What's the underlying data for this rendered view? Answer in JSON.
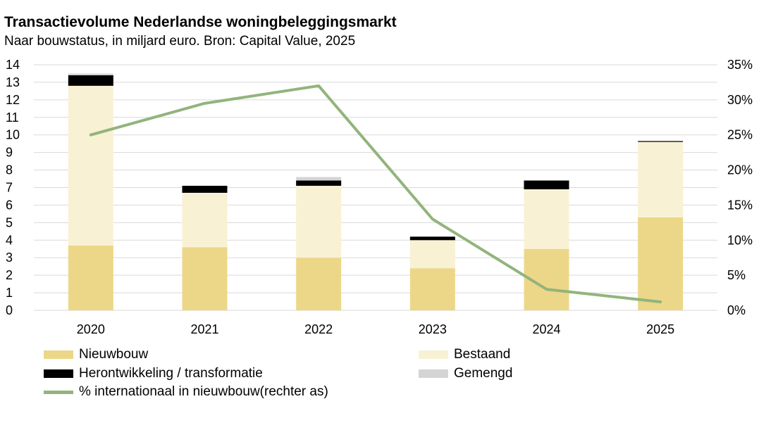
{
  "header": {
    "title": "Transactievolume Nederlandse woningbeleggingsmarkt",
    "subtitle": "Naar bouwstatus, in miljard euro. Bron: Capital Value, 2025"
  },
  "colors": {
    "nieuwbouw": "#ecd789",
    "bestaand": "#f8f1d3",
    "herontwikkeling": "#000000",
    "gemengd": "#d4d4d4",
    "line": "#92b47c",
    "grid": "#d9d9d9"
  },
  "chart_data": {
    "type": "bar",
    "stacked": true,
    "categories": [
      "2020",
      "2021",
      "2022",
      "2023",
      "2024",
      "2025"
    ],
    "series": [
      {
        "name": "Nieuwbouw",
        "values": [
          3.7,
          3.6,
          3.0,
          2.4,
          3.5,
          5.3
        ]
      },
      {
        "name": "Bestaand",
        "values": [
          9.1,
          3.1,
          4.1,
          1.6,
          3.4,
          4.3
        ]
      },
      {
        "name": "Herontwikkeling / transformatie",
        "values": [
          0.6,
          0.4,
          0.3,
          0.2,
          0.5,
          0.05
        ]
      },
      {
        "name": "Gemengd",
        "values": [
          0.1,
          0.0,
          0.2,
          0.0,
          0.0,
          0.0
        ]
      }
    ],
    "line_series": {
      "name": "% internationaal in nieuwbouw(rechter as)",
      "axis": "right",
      "values": [
        25,
        29.5,
        32,
        13,
        3,
        1.2
      ]
    },
    "ylim": [
      0,
      14
    ],
    "y_ticks": [
      "0",
      "1",
      "2",
      "3",
      "4",
      "5",
      "6",
      "7",
      "8",
      "9",
      "10",
      "11",
      "12",
      "13",
      "14"
    ],
    "y2lim": [
      0,
      35
    ],
    "y2_ticks": [
      "0%",
      "5%",
      "10%",
      "15%",
      "20%",
      "25%",
      "30%",
      "35%"
    ],
    "grid": true,
    "legend_position": "bottom"
  }
}
